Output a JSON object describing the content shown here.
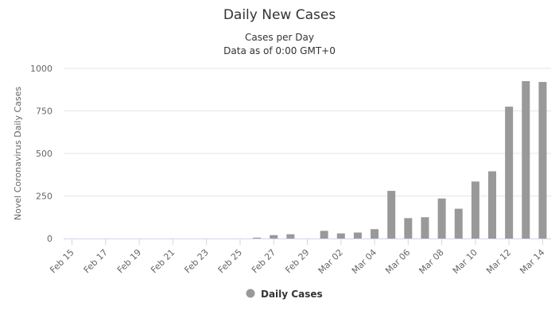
{
  "chart_data": {
    "type": "bar",
    "title": "Daily New Cases",
    "subtitle_lines": [
      "Cases per Day",
      "Data as of 0:00 GMT+0"
    ],
    "ylabel": "Novel Coronavirus Daily Cases",
    "xlabel": "",
    "ylim": [
      0,
      1000
    ],
    "yticks": [
      0,
      250,
      500,
      750,
      1000
    ],
    "grid": true,
    "legend_position": "bottom-center",
    "categories": [
      "Feb 15",
      "Feb 16",
      "Feb 17",
      "Feb 18",
      "Feb 19",
      "Feb 20",
      "Feb 21",
      "Feb 22",
      "Feb 23",
      "Feb 24",
      "Feb 25",
      "Feb 26",
      "Feb 27",
      "Feb 28",
      "Feb 29",
      "Mar 01",
      "Mar 02",
      "Mar 03",
      "Mar 04",
      "Mar 05",
      "Mar 06",
      "Mar 07",
      "Mar 08",
      "Mar 09",
      "Mar 10",
      "Mar 11",
      "Mar 12",
      "Mar 13",
      "Mar 14"
    ],
    "xtick_labels": [
      "Feb 15",
      "Feb 17",
      "Feb 19",
      "Feb 21",
      "Feb 23",
      "Feb 25",
      "Feb 27",
      "Feb 29",
      "Mar 02",
      "Mar 04",
      "Mar 06",
      "Mar 08",
      "Mar 10",
      "Mar 12",
      "Mar 14"
    ],
    "series": [
      {
        "name": "Daily Cases",
        "color": "#999999",
        "values": [
          0,
          0,
          0,
          0,
          0,
          0,
          0,
          0,
          0,
          0,
          0,
          5,
          20,
          25,
          0,
          45,
          30,
          35,
          55,
          280,
          120,
          125,
          235,
          175,
          335,
          395,
          775,
          925,
          920
        ]
      }
    ]
  },
  "colors": {
    "gridline": "#e6e6e6",
    "axis_line": "#ccd6eb",
    "text": "#333333",
    "tick_text": "#666666"
  }
}
